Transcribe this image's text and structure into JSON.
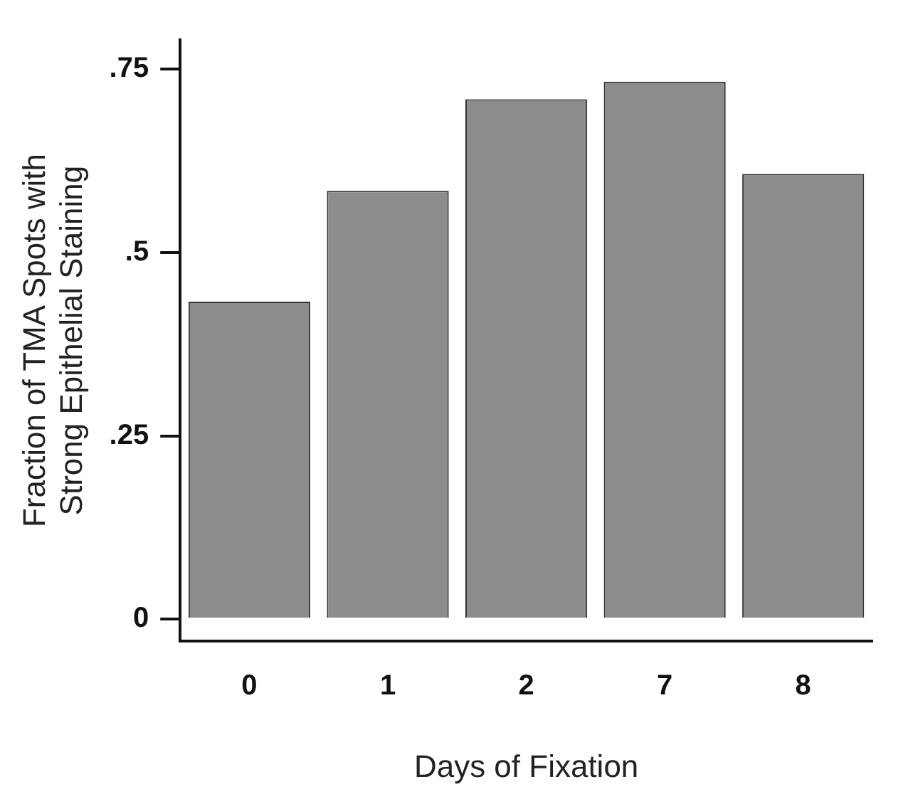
{
  "chart_data": {
    "type": "bar",
    "xlabel": "Days of Fixation",
    "ylabel": "Fraction of TMA Spots with\nStrong Epithelial Staining",
    "categories": [
      "0",
      "1",
      "2",
      "7",
      "8"
    ],
    "values": [
      0.433,
      0.584,
      0.709,
      0.733,
      0.607
    ],
    "color": "#8c8c8c",
    "ylim": [
      -0.03,
      0.79
    ],
    "yticks": [
      0,
      {
        "value": 0.25,
        "label": ".25"
      },
      {
        "value": 0.5,
        "label": ".5"
      },
      {
        "value": 0.75,
        "label": ".75"
      }
    ],
    "grid": false,
    "legend": false
  }
}
